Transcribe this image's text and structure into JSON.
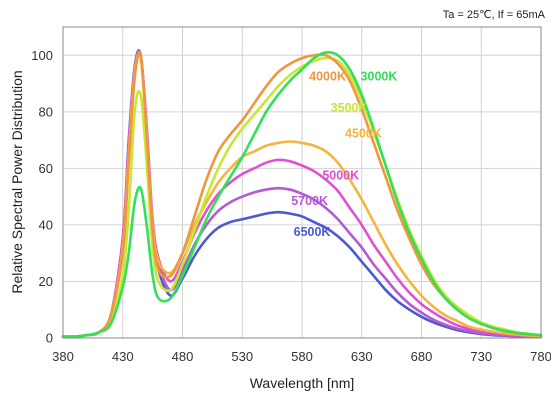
{
  "chart_data": {
    "type": "line",
    "title": "",
    "conditions": "Ta = 25℃,  If =  65mA",
    "xlabel": "Wavelength [nm]",
    "ylabel": "Relative Spectral Power Distribution",
    "xlim": [
      380,
      780
    ],
    "ylim": [
      0,
      110
    ],
    "x_ticks": [
      "380",
      "430",
      "480",
      "530",
      "580",
      "630",
      "680",
      "730",
      "780"
    ],
    "y_ticks": [
      "0",
      "20",
      "40",
      "60",
      "80",
      "100"
    ],
    "grid": true,
    "legend": "inline labels",
    "x": [
      380,
      390,
      400,
      410,
      420,
      430,
      435,
      440,
      445,
      450,
      455,
      460,
      470,
      480,
      490,
      500,
      510,
      520,
      530,
      540,
      550,
      560,
      570,
      580,
      590,
      600,
      610,
      620,
      630,
      640,
      650,
      660,
      670,
      680,
      690,
      700,
      710,
      720,
      730,
      740,
      750,
      760,
      770,
      780
    ],
    "series": [
      {
        "name": "3000K",
        "color": "#33e05a",
        "values": [
          0.5,
          0.5,
          1,
          2,
          5,
          18,
          30,
          48,
          53,
          40,
          22,
          14,
          14,
          22,
          32,
          42,
          50,
          57,
          64,
          72,
          80,
          86,
          91,
          95,
          99,
          101,
          100,
          95,
          86,
          74,
          61,
          48,
          37,
          28,
          20,
          14,
          10,
          7,
          5,
          3.5,
          2.5,
          1.8,
          1.3,
          1
        ]
      },
      {
        "name": "3500K",
        "color": "#c8e632",
        "values": [
          0.5,
          0.5,
          1,
          2,
          6,
          22,
          45,
          80,
          86,
          62,
          32,
          20,
          17,
          26,
          38,
          50,
          60,
          68,
          74,
          79,
          84,
          89,
          93,
          96,
          98,
          99,
          98,
          93,
          84,
          73,
          61,
          49,
          38,
          29,
          21,
          15,
          11,
          8,
          5.5,
          4,
          3,
          2,
          1.5,
          1
        ]
      },
      {
        "name": "4000K",
        "color": "#f0963c",
        "values": [
          0.5,
          0.5,
          1,
          2,
          8,
          30,
          62,
          92,
          100,
          72,
          38,
          24,
          22,
          30,
          43,
          56,
          66,
          72,
          77,
          83,
          89,
          94,
          97,
          99,
          100,
          100,
          97,
          91,
          81,
          69,
          57,
          45,
          35,
          26,
          19,
          14,
          10,
          7,
          5,
          3.5,
          2.5,
          1.8,
          1.3,
          1
        ]
      },
      {
        "name": "4500K",
        "color": "#f5b53c",
        "values": [
          0.5,
          0.5,
          1,
          2,
          8,
          32,
          65,
          94,
          99,
          72,
          40,
          27,
          23,
          30,
          40,
          48,
          55,
          60,
          64,
          66,
          68,
          69,
          69.5,
          69,
          68,
          66,
          62,
          56,
          49,
          41,
          33,
          26,
          20,
          15,
          11,
          8,
          6,
          4,
          3,
          2.2,
          1.6,
          1.2,
          0.9,
          0.7
        ]
      },
      {
        "name": "5000K",
        "color": "#e050d2",
        "values": [
          0.5,
          0.5,
          1,
          2,
          8,
          35,
          68,
          95,
          100,
          75,
          42,
          28,
          20,
          27,
          37,
          45,
          51,
          55,
          58,
          60,
          62,
          63,
          62.5,
          61,
          59,
          56,
          52,
          46,
          40,
          33,
          27,
          21,
          16,
          12,
          9,
          6.5,
          4.5,
          3.2,
          2.3,
          1.7,
          1.2,
          0.9,
          0.7,
          0.5
        ]
      },
      {
        "name": "5700K",
        "color": "#b45ad2",
        "values": [
          0.5,
          0.5,
          1,
          2,
          8,
          35,
          68,
          95,
          100,
          74,
          40,
          26,
          17,
          24,
          33,
          40,
          45,
          48,
          50,
          51.5,
          52.5,
          53,
          52.5,
          51,
          49,
          46,
          42,
          37,
          32,
          26,
          21,
          16,
          12,
          9,
          6.5,
          4.7,
          3.3,
          2.4,
          1.7,
          1.2,
          0.9,
          0.7,
          0.5,
          0.4
        ]
      },
      {
        "name": "6500K",
        "color": "#4a5ad2",
        "values": [
          0.5,
          0.5,
          1,
          2,
          8,
          35,
          70,
          96,
          100,
          74,
          39,
          24,
          15,
          21,
          29,
          35,
          39,
          41,
          42,
          43,
          44,
          44.5,
          44,
          43,
          41,
          39,
          36,
          32,
          27,
          22,
          17,
          13,
          10,
          7.5,
          5.5,
          4,
          2.8,
          2,
          1.4,
          1,
          0.8,
          0.6,
          0.5,
          0.4
        ]
      }
    ]
  }
}
